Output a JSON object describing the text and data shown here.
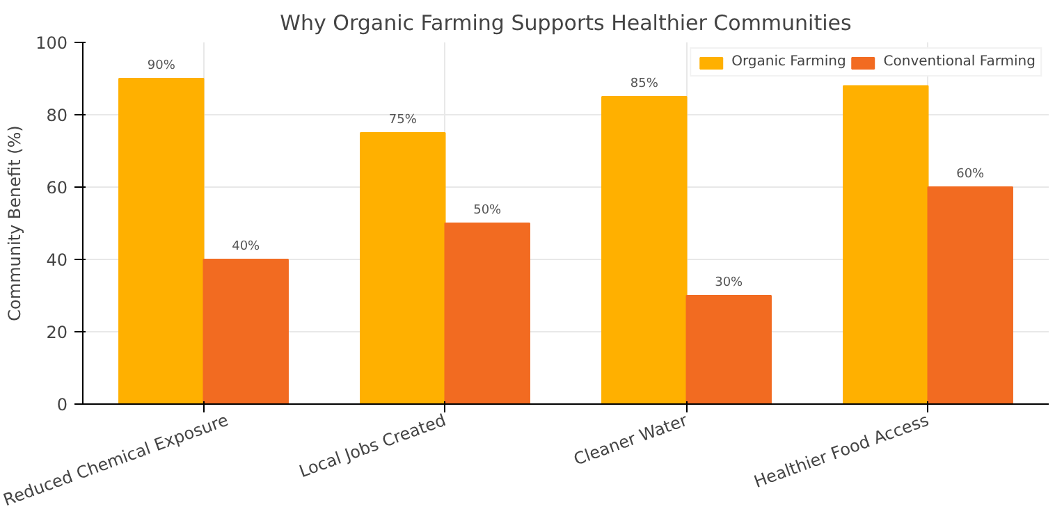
{
  "chart_data": {
    "type": "bar",
    "title": "Why Organic Farming Supports Healthier Communities",
    "ylabel": "Community Benefit (%)",
    "categories": [
      "Reduced Chemical Exposure",
      "Local Jobs Created",
      "Cleaner Water",
      "Healthier Food Access"
    ],
    "series": [
      {
        "name": "Organic Farming",
        "color": "#ffb000",
        "values": [
          90,
          75,
          85,
          88
        ],
        "value_labels": [
          "90%",
          "75%",
          "85%",
          null
        ]
      },
      {
        "name": "Conventional Farming",
        "color": "#f26b21",
        "values": [
          40,
          50,
          30,
          60
        ],
        "value_labels": [
          "40%",
          "50%",
          "30%",
          "60%"
        ]
      }
    ],
    "ylim": [
      0,
      100
    ],
    "yticks": [
      0,
      20,
      40,
      60,
      80,
      100
    ],
    "grid": true,
    "legend": "top right"
  }
}
